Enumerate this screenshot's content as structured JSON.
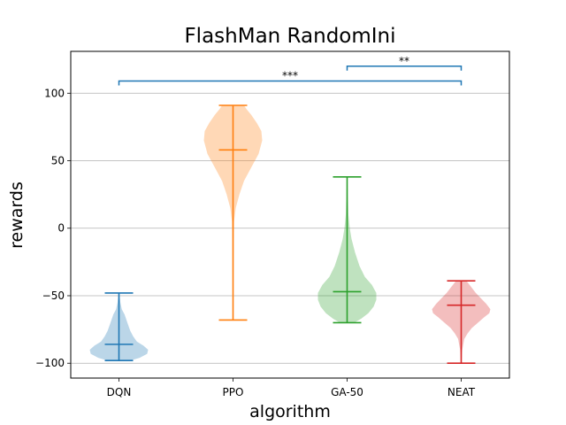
{
  "chart_data": {
    "type": "violin",
    "title": "FlashMan RandomIni",
    "xlabel": "algorithm",
    "ylabel": "rewards",
    "ylim": [
      -111,
      131
    ],
    "yticks": [
      -100,
      -50,
      0,
      50,
      100
    ],
    "grid": "horizontal",
    "categories": [
      "DQN",
      "PPO",
      "GA-50",
      "NEAT"
    ],
    "series": [
      {
        "category": "DQN",
        "color": "#1f77b4",
        "min": -98,
        "max": -48,
        "median": -86,
        "density": [
          [
            -98,
            12
          ],
          [
            -96,
            22
          ],
          [
            -93,
            30
          ],
          [
            -90,
            31
          ],
          [
            -87,
            26
          ],
          [
            -84,
            19
          ],
          [
            -80,
            15
          ],
          [
            -76,
            12
          ],
          [
            -72,
            10
          ],
          [
            -68,
            8
          ],
          [
            -64,
            6
          ],
          [
            -60,
            3
          ],
          [
            -55,
            1.5
          ],
          [
            -48,
            0.5
          ]
        ]
      },
      {
        "category": "PPO",
        "color": "#ff7f0e",
        "min": -68,
        "max": 91,
        "median": 58,
        "density": [
          [
            -68,
            0.3
          ],
          [
            -40,
            0.5
          ],
          [
            -10,
            0.8
          ],
          [
            5,
            1.2
          ],
          [
            15,
            3
          ],
          [
            25,
            7
          ],
          [
            35,
            12
          ],
          [
            45,
            20
          ],
          [
            55,
            28
          ],
          [
            65,
            32
          ],
          [
            72,
            31
          ],
          [
            78,
            26
          ],
          [
            84,
            20
          ],
          [
            88,
            15
          ],
          [
            91,
            12
          ]
        ]
      },
      {
        "category": "GA-50",
        "color": "#2ca02c",
        "min": -70,
        "max": 38,
        "median": -47,
        "density": [
          [
            -70,
            8
          ],
          [
            -67,
            16
          ],
          [
            -63,
            24
          ],
          [
            -58,
            30
          ],
          [
            -53,
            33
          ],
          [
            -48,
            33
          ],
          [
            -42,
            28
          ],
          [
            -36,
            20
          ],
          [
            -28,
            14
          ],
          [
            -18,
            9
          ],
          [
            -8,
            5
          ],
          [
            0,
            3
          ],
          [
            10,
            1.5
          ],
          [
            25,
            0.8
          ],
          [
            38,
            0.4
          ]
        ]
      },
      {
        "category": "NEAT",
        "color": "#d62728",
        "min": -100,
        "max": -39,
        "median": -57,
        "density": [
          [
            -100,
            0.3
          ],
          [
            -90,
            1
          ],
          [
            -82,
            3
          ],
          [
            -78,
            6
          ],
          [
            -74,
            10
          ],
          [
            -70,
            16
          ],
          [
            -66,
            22
          ],
          [
            -63,
            27
          ],
          [
            -60,
            28
          ],
          [
            -56,
            24
          ],
          [
            -52,
            19
          ],
          [
            -48,
            14
          ],
          [
            -44,
            10
          ],
          [
            -41,
            7
          ],
          [
            -39,
            5
          ]
        ]
      }
    ],
    "significance": [
      {
        "from": "DQN",
        "to": "NEAT",
        "y": 109,
        "label": "***",
        "color": "#1f77b4"
      },
      {
        "from": "GA-50",
        "to": "NEAT",
        "y": 120,
        "label": "**",
        "color": "#1f77b4"
      }
    ]
  }
}
